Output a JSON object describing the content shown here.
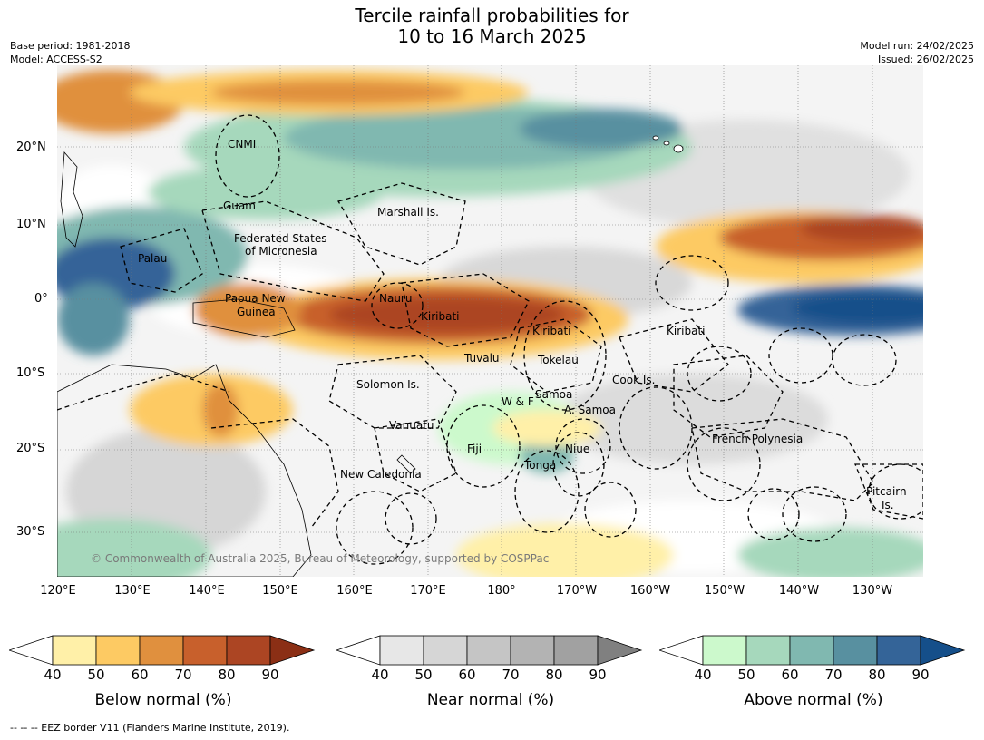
{
  "title_line1": "Tercile rainfall probabilities for",
  "title_line2": "10 to 16 March 2025",
  "meta": {
    "base_period": "Base period: 1981-2018",
    "model": "Model: ACCESS-S2",
    "model_run": "Model run: 24/02/2025",
    "issued": "Issued: 26/02/2025"
  },
  "lat_labels": [
    "20°N",
    "10°N",
    "0°",
    "10°S",
    "20°S",
    "30°S"
  ],
  "lon_labels": [
    "120°E",
    "130°E",
    "140°E",
    "150°E",
    "160°E",
    "170°E",
    "180°",
    "170°W",
    "160°W",
    "150°W",
    "140°W",
    "130°W"
  ],
  "places": [
    "CNMI",
    "Guam",
    "Marshall Is.",
    "Federated States",
    "of Micronesia",
    "Palau",
    "Papua New",
    "Guinea",
    "Nauru",
    "Kiribati",
    "Kiribati",
    "Kiribati",
    "Tuvalu",
    "Tokelau",
    "Solomon Is.",
    "Cook Is.",
    "Samoa",
    "W & F",
    "A. Samoa",
    "Vanuatu",
    "Fiji",
    "Niue",
    "French Polynesia",
    "Tonga",
    "New Caledonia",
    "Pitcairn",
    "Is."
  ],
  "copyright": "© Commonwealth of Australia 2025, Bureau of Meteorology, supported by COSPPac",
  "colorbars": [
    {
      "title": "Below normal (%)",
      "ticks": [
        "40",
        "50",
        "60",
        "70",
        "80",
        "90"
      ],
      "colors": [
        "#ffffff",
        "#fff0a8",
        "#fdca63",
        "#e0903e",
        "#c8602c",
        "#ac4523",
        "#8b2f15"
      ]
    },
    {
      "title": "Near normal (%)",
      "ticks": [
        "40",
        "50",
        "60",
        "70",
        "80",
        "90"
      ],
      "colors": [
        "#ffffff",
        "#e7e7e7",
        "#d6d6d6",
        "#c5c5c5",
        "#b3b3b3",
        "#a1a1a1",
        "#808080"
      ]
    },
    {
      "title": "Above normal (%)",
      "ticks": [
        "40",
        "50",
        "60",
        "70",
        "80",
        "90"
      ],
      "colors": [
        "#ffffff",
        "#ccf9cc",
        "#a6d8bc",
        "#80b8b0",
        "#5890a0",
        "#346498",
        "#154f8a"
      ]
    }
  ],
  "footnote": "--  --  -- EEZ border V11 (Flanders Marine Institute, 2019)."
}
